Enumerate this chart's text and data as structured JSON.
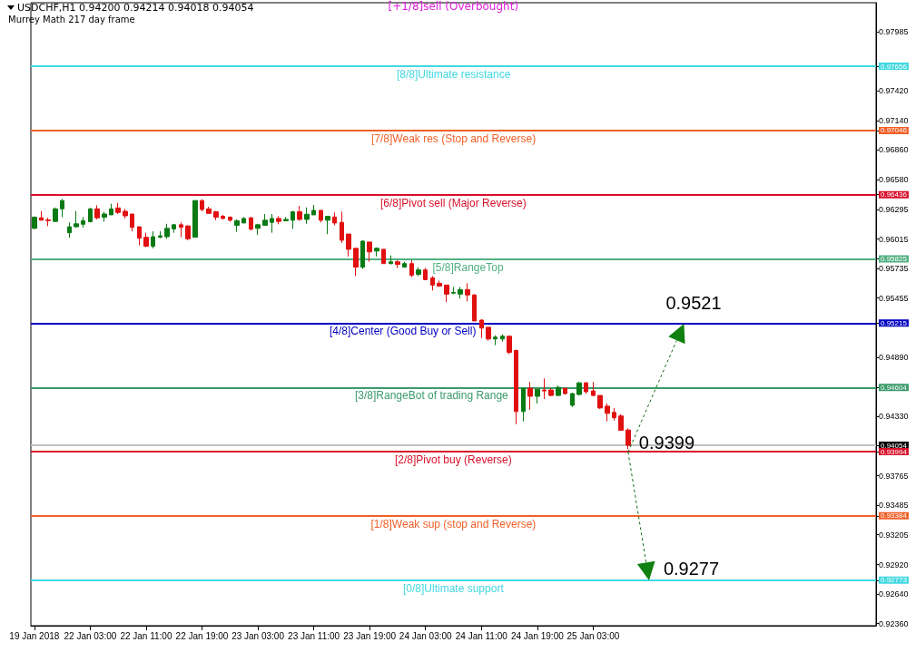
{
  "chart_data": {
    "type": "candlestick",
    "title": "USDCHF,H1  0.94200 0.94214 0.94018 0.94054",
    "subtitle": "Murrey Math 217 day frame",
    "categories": [
      "19 Jan 2018",
      null,
      null,
      null,
      null,
      null,
      null,
      null,
      "22 Jan 03:00",
      null,
      null,
      null,
      null,
      null,
      null,
      null,
      "22 Jan 11:00",
      null,
      null,
      null,
      null,
      null,
      null,
      null,
      "22 Jan 19:00",
      null,
      null,
      null,
      null,
      null,
      null,
      null,
      "23 Jan 03:00",
      null,
      null,
      null,
      null,
      null,
      null,
      null,
      "23 Jan 11:00",
      null,
      null,
      null,
      null,
      null,
      null,
      null,
      "23 Jan 19:00",
      null,
      null,
      null,
      null,
      null,
      null,
      null,
      "24 Jan 03:00",
      null,
      null,
      null,
      null,
      null,
      null,
      null,
      "24 Jan 11:00",
      null,
      null,
      null,
      null,
      null,
      null,
      null,
      "24 Jan 19:00",
      null,
      null,
      null,
      null,
      null,
      null,
      null,
      "25 Jan 03:00",
      null,
      null,
      null,
      null,
      null,
      null,
      null,
      null,
      null,
      null,
      null,
      null,
      null,
      null,
      null,
      null,
      null,
      null,
      null,
      null,
      null,
      null,
      null,
      null,
      null,
      null,
      null,
      null,
      null,
      null,
      null,
      null,
      null,
      null,
      null,
      null,
      null,
      null,
      null,
      null
    ],
    "ohlc": [
      [
        0.96116,
        0.9623,
        0.96108,
        0.96222
      ],
      [
        0.96216,
        0.96281,
        0.96193,
        0.96193
      ],
      [
        0.96196,
        0.96216,
        0.96137,
        0.9619
      ],
      [
        0.96182,
        0.96315,
        0.96182,
        0.96301
      ],
      [
        0.96301,
        0.96395,
        0.96222,
        0.9638
      ],
      [
        0.96074,
        0.96173,
        0.96026,
        0.96131
      ],
      [
        0.96131,
        0.96281,
        0.96125,
        0.96159
      ],
      [
        0.96155,
        0.96222,
        0.96125,
        0.96188
      ],
      [
        0.96179,
        0.9631,
        0.96173,
        0.96301
      ],
      [
        0.96301,
        0.96335,
        0.96201,
        0.96216
      ],
      [
        0.96222,
        0.96273,
        0.96179,
        0.96252
      ],
      [
        0.96244,
        0.9635,
        0.96244,
        0.96301
      ],
      [
        0.9631,
        0.96358,
        0.96252,
        0.96267
      ],
      [
        0.96278,
        0.96301,
        0.9621,
        0.96235
      ],
      [
        0.96252,
        0.96252,
        0.96088,
        0.96125
      ],
      [
        0.96131,
        0.96131,
        0.95954,
        0.96022
      ],
      [
        0.96031,
        0.96074,
        0.95937,
        0.95946
      ],
      [
        0.95946,
        0.96088,
        0.95926,
        0.96037
      ],
      [
        0.96031,
        0.96088,
        0.96022,
        0.96045
      ],
      [
        0.96037,
        0.96159,
        0.96017,
        0.96116
      ],
      [
        0.96111,
        0.96159,
        0.96074,
        0.9615
      ],
      [
        0.9615,
        0.96173,
        0.96031,
        0.96125
      ],
      [
        0.96139,
        0.96145,
        0.96003,
        0.96017
      ],
      [
        0.96031,
        0.9638,
        0.96031,
        0.9638
      ],
      [
        0.9638,
        0.96392,
        0.96278,
        0.96295
      ],
      [
        0.96301,
        0.96321,
        0.96258,
        0.96258
      ],
      [
        0.96273,
        0.96281,
        0.96193,
        0.96222
      ],
      [
        0.9623,
        0.96244,
        0.96201,
        0.9621
      ],
      [
        0.96222,
        0.9623,
        0.96179,
        0.96193
      ],
      [
        0.96145,
        0.96201,
        0.96082,
        0.96188
      ],
      [
        0.96167,
        0.96224,
        0.96167,
        0.9621
      ],
      [
        0.96216,
        0.96224,
        0.96097,
        0.96108
      ],
      [
        0.96116,
        0.96159,
        0.96054,
        0.9615
      ],
      [
        0.96145,
        0.96252,
        0.96145,
        0.96193
      ],
      [
        0.96173,
        0.96252,
        0.96074,
        0.9621
      ],
      [
        0.9621,
        0.9623,
        0.96155,
        0.96182
      ],
      [
        0.96188,
        0.96224,
        0.96182,
        0.96201
      ],
      [
        0.96193,
        0.96281,
        0.96111,
        0.96273
      ],
      [
        0.96273,
        0.96329,
        0.96188,
        0.96201
      ],
      [
        0.96201,
        0.96315,
        0.96159,
        0.9625
      ],
      [
        0.96244,
        0.96338,
        0.96244,
        0.96287
      ],
      [
        0.96287,
        0.96287,
        0.96173,
        0.96193
      ],
      [
        0.96193,
        0.9623,
        0.9606,
        0.9623
      ],
      [
        0.96224,
        0.96267,
        0.96145,
        0.96167
      ],
      [
        0.96173,
        0.96275,
        0.95977,
        0.96003
      ],
      [
        0.96062,
        0.96062,
        0.95849,
        0.95917
      ],
      [
        0.95926,
        0.95926,
        0.95662,
        0.95747
      ],
      [
        0.95747,
        0.96003,
        0.9573,
        0.95994
      ],
      [
        0.95986,
        0.95986,
        0.95798,
        0.95892
      ],
      [
        0.959,
        0.95935,
        0.95849,
        0.95926
      ],
      [
        0.95917,
        0.95917,
        0.95781,
        0.95781
      ],
      [
        0.95781,
        0.95858,
        0.95773,
        0.95798
      ],
      [
        0.95798,
        0.95815,
        0.95739,
        0.95773
      ],
      [
        0.95747,
        0.95798,
        0.95747,
        0.95781
      ],
      [
        0.95781,
        0.95815,
        0.95653,
        0.9567
      ],
      [
        0.95679,
        0.95747,
        0.95662,
        0.95721
      ],
      [
        0.95721,
        0.95739,
        0.95628,
        0.95628
      ],
      [
        0.95645,
        0.95662,
        0.95525,
        0.95577
      ],
      [
        0.95594,
        0.95619,
        0.95559,
        0.95568
      ],
      [
        0.95577,
        0.95577,
        0.95415,
        0.95491
      ],
      [
        0.955,
        0.95559,
        0.95491,
        0.95508
      ],
      [
        0.95491,
        0.95559,
        0.95449,
        0.95534
      ],
      [
        0.95534,
        0.95594,
        0.95423,
        0.95483
      ],
      [
        0.95483,
        0.95491,
        0.95236,
        0.95236
      ],
      [
        0.95244,
        0.95253,
        0.95074,
        0.95168
      ],
      [
        0.95176,
        0.95176,
        0.95048,
        0.95065
      ],
      [
        0.95065,
        0.95099,
        0.95006,
        0.95082
      ],
      [
        0.95065,
        0.95108,
        0.9504,
        0.95091
      ],
      [
        0.95091,
        0.95091,
        0.9492,
        0.94937
      ],
      [
        0.94955,
        0.94963,
        0.94256,
        0.94375
      ],
      [
        0.94375,
        0.94597,
        0.94281,
        0.94597
      ],
      [
        0.94597,
        0.94656,
        0.94392,
        0.9452
      ],
      [
        0.9452,
        0.94588,
        0.94452,
        0.94588
      ],
      [
        0.9458,
        0.9469,
        0.94494,
        0.94571
      ],
      [
        0.9458,
        0.94597,
        0.9452,
        0.94528
      ],
      [
        0.94528,
        0.94622,
        0.9452,
        0.94605
      ],
      [
        0.94597,
        0.94597,
        0.94537,
        0.94545
      ],
      [
        0.94435,
        0.94554,
        0.94418,
        0.94545
      ],
      [
        0.94537,
        0.94656,
        0.94528,
        0.94648
      ],
      [
        0.94648,
        0.94656,
        0.94545,
        0.94563
      ],
      [
        0.94571,
        0.94656,
        0.9452,
        0.94528
      ],
      [
        0.94528,
        0.94528,
        0.94401,
        0.94409
      ],
      [
        0.94426,
        0.94452,
        0.94281,
        0.94358
      ],
      [
        0.94367,
        0.94409,
        0.9429,
        0.94316
      ],
      [
        0.94333,
        0.9435,
        0.94196,
        0.94196
      ],
      [
        0.942,
        0.94214,
        0.94018,
        0.94054
      ],
      null,
      null,
      null,
      null,
      null,
      null,
      null,
      null,
      null,
      null,
      null,
      null,
      null,
      null,
      null,
      null,
      null,
      null,
      null,
      null,
      null,
      null,
      null,
      null,
      null,
      null,
      null,
      null,
      null,
      null,
      null,
      null,
      null,
      null,
      null
    ],
    "ylim": [
      0.9234,
      0.9826
    ],
    "yticks": [
      {
        "value": 0.97985,
        "label": "0.97985"
      },
      {
        "value": 0.97656,
        "label": "0.97656"
      },
      {
        "value": 0.9742,
        "label": "0.97420"
      },
      {
        "value": 0.9714,
        "label": "0.97140"
      },
      {
        "value": 0.97046,
        "label": "0.97046"
      },
      {
        "value": 0.9686,
        "label": "0.96860"
      },
      {
        "value": 0.9658,
        "label": "0.96580"
      },
      {
        "value": 0.96436,
        "label": "0.96436"
      },
      {
        "value": 0.96295,
        "label": "0.96295"
      },
      {
        "value": 0.96015,
        "label": "0.96015"
      },
      {
        "value": 0.95825,
        "label": "0.95825"
      },
      {
        "value": 0.95735,
        "label": "0.95735"
      },
      {
        "value": 0.95455,
        "label": "0.95455"
      },
      {
        "value": 0.95215,
        "label": "0.95215"
      },
      {
        "value": 0.9489,
        "label": "0.94890"
      },
      {
        "value": 0.94604,
        "label": "0.94604"
      },
      {
        "value": 0.94054,
        "label": "0.94054"
      },
      {
        "value": 0.93994,
        "label": "0.93994"
      },
      {
        "value": 0.93384,
        "label": "0.93384"
      },
      {
        "value": 0.92773,
        "label": "0.92773"
      },
      {
        "value": 0.9433,
        "label": "0.94330"
      },
      {
        "value": 0.93765,
        "label": "0.93765"
      },
      {
        "value": 0.93485,
        "label": "0.93485"
      },
      {
        "value": 0.93205,
        "label": "0.93205"
      },
      {
        "value": 0.9292,
        "label": "0.92920"
      },
      {
        "value": 0.9264,
        "label": "0.92640"
      },
      {
        "value": 0.9236,
        "label": "0.92360"
      }
    ],
    "ref_lines": [
      {
        "axis": "y",
        "value": 0.97656,
        "label": "[8/8]Ultimate resistance",
        "color": "#40d8e0"
      },
      {
        "axis": "y",
        "value": 0.97046,
        "label": "[7/8]Weak res (Stop and Reverse)",
        "color": "#f06028"
      },
      {
        "axis": "y",
        "value": 0.96436,
        "label": "[6/8]Pivot sell (Major Reverse)",
        "color": "#d8102a"
      },
      {
        "axis": "y",
        "value": 0.95825,
        "label": "[5/8]RangeTop",
        "color": "#50b080"
      },
      {
        "axis": "y",
        "value": 0.95215,
        "label": "[4/8]Center (Good Buy or Sell)",
        "color": "#0000c0"
      },
      {
        "axis": "y",
        "value": 0.94604,
        "label": "[3/8]RangeBot of trading Range",
        "color": "#3a9a6a"
      },
      {
        "axis": "y",
        "value": 0.94054,
        "label": null,
        "color": "#c0c0c0"
      },
      {
        "axis": "y",
        "value": 0.93994,
        "label": "[2/8]Pivot buy (Reverse)",
        "color": "#d8102a"
      },
      {
        "axis": "y",
        "value": 0.93384,
        "label": "[1/8]Weak sup (stop and Reverse)",
        "color": "#f06028"
      },
      {
        "axis": "y",
        "value": 0.92773,
        "label": "[0/8]Ultimate support",
        "color": "#40d8e0"
      }
    ],
    "annotations": [
      "[+1/8]sell (Overbought)",
      {
        "text": "0.9521",
        "y": 0.9521
      },
      {
        "text": "0.9399",
        "y": 0.9399
      },
      {
        "text": "0.9277",
        "y": 0.9277
      }
    ]
  }
}
